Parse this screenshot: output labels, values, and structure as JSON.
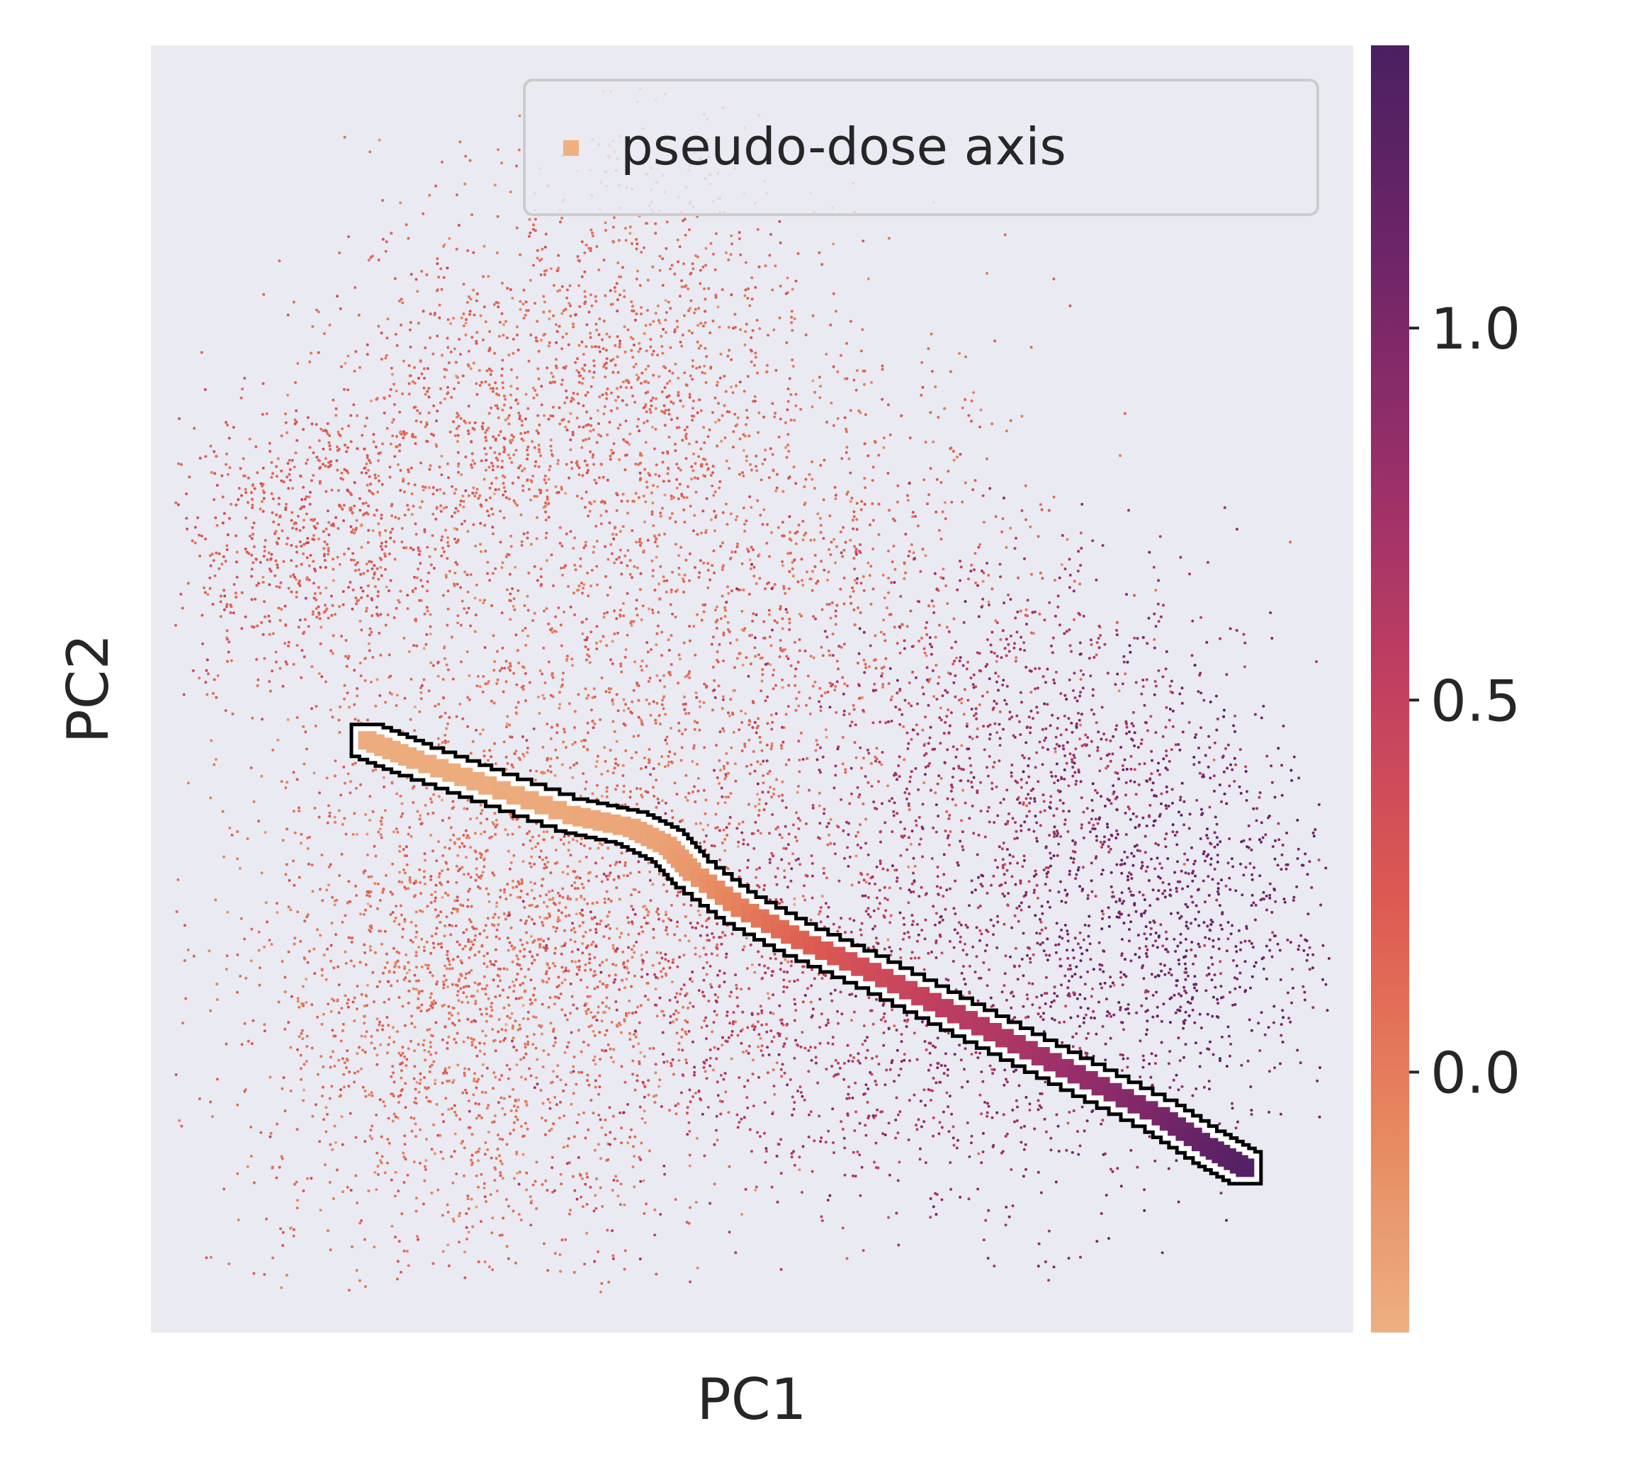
{
  "chart_data": {
    "type": "scatter",
    "title": "",
    "xlabel": "PC1",
    "ylabel": "PC2",
    "xlim": [
      0,
      100
    ],
    "ylim": [
      0,
      100
    ],
    "x_ticks_shown": false,
    "y_ticks_shown": false,
    "grid": false,
    "background": "#eaeaf2",
    "legend": {
      "placement": "top-right",
      "entries": [
        {
          "label": "pseudo-dose axis",
          "marker": "square",
          "color": "#efb07f"
        }
      ]
    },
    "colorbar": {
      "range": [
        -0.35,
        1.38
      ],
      "ticks": [
        0.0,
        0.5,
        1.0
      ],
      "tick_labels": [
        "0.0",
        "0.5",
        "1.0"
      ],
      "colormap_stops": [
        "#edb081",
        "#e7855e",
        "#dd5a52",
        "#c2405f",
        "#9a2f6a",
        "#6f2568",
        "#4a2062"
      ]
    },
    "series": [
      {
        "name": "pseudo-dose axis",
        "type": "line-of-squares",
        "x": [
          18,
          22,
          28,
          35,
          40,
          43,
          45,
          49,
          54,
          60,
          66,
          72,
          78,
          84,
          88,
          91
        ],
        "y": [
          46,
          44.5,
          42.5,
          40.2,
          39.2,
          37.8,
          35.8,
          33,
          30.5,
          28,
          25.2,
          22.4,
          19.6,
          16.8,
          14.4,
          12.8
        ],
        "value": [
          -0.32,
          -0.32,
          -0.32,
          -0.3,
          -0.28,
          -0.25,
          -0.18,
          -0.02,
          0.18,
          0.38,
          0.55,
          0.68,
          0.85,
          1.02,
          1.2,
          1.3
        ]
      },
      {
        "name": "",
        "type": "point-cloud",
        "clusters": [
          {
            "x": 12,
            "y": 61,
            "sx": 6,
            "sy": 6,
            "n": 700,
            "value": 0.2
          },
          {
            "x": 28,
            "y": 70,
            "sx": 8,
            "sy": 8,
            "n": 900,
            "value": 0.12
          },
          {
            "x": 42,
            "y": 77,
            "sx": 7,
            "sy": 9,
            "n": 700,
            "value": 0.1
          },
          {
            "x": 52,
            "y": 58,
            "sx": 12,
            "sy": 10,
            "n": 1200,
            "value": 0.12
          },
          {
            "x": 33,
            "y": 37,
            "sx": 11,
            "sy": 11,
            "n": 1500,
            "value": 0.05
          },
          {
            "x": 26,
            "y": 23,
            "sx": 10,
            "sy": 10,
            "n": 1400,
            "value": 0.08
          },
          {
            "x": 52,
            "y": 27,
            "sx": 10,
            "sy": 9,
            "n": 900,
            "value": 0.55
          },
          {
            "x": 72,
            "y": 45,
            "sx": 9,
            "sy": 8,
            "n": 900,
            "value": 0.7
          },
          {
            "x": 85,
            "y": 33,
            "sx": 7,
            "sy": 8,
            "n": 900,
            "value": 1.05
          },
          {
            "x": 70,
            "y": 22,
            "sx": 9,
            "sy": 7,
            "n": 500,
            "value": 0.85
          }
        ]
      }
    ]
  }
}
